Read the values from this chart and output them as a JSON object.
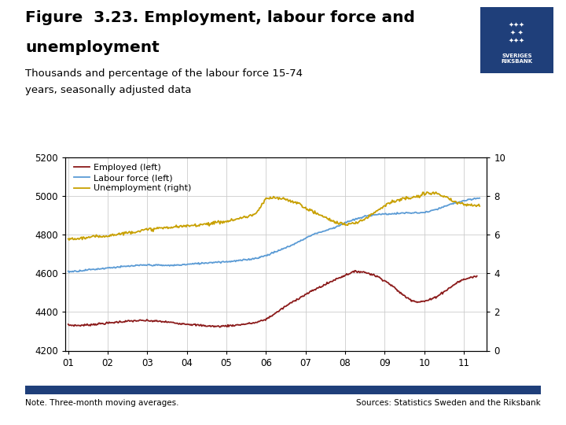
{
  "title_line1": "Figure  3.23. Employment, labour force and",
  "title_line2": "unemployment",
  "subtitle_line1": "Thousands and percentage of the labour force 15-74",
  "subtitle_line2": "years, seasonally adjusted data",
  "legend_labels": [
    "Employed (left)",
    "Labour force (left)",
    "Unemployment (right)"
  ],
  "employed_color": "#8B1A1A",
  "labour_color": "#5B9BD5",
  "unemployment_color": "#C8A000",
  "x_ticks": [
    "01",
    "02",
    "03",
    "04",
    "05",
    "06",
    "07",
    "08",
    "09",
    "10",
    "11"
  ],
  "yleft_ticks": [
    4200,
    4400,
    4600,
    4800,
    5000,
    5200
  ],
  "yright_ticks": [
    0,
    2,
    4,
    6,
    8,
    10
  ],
  "note": "Note. Three-month moving averages.",
  "source": "Sources: Statistics Sweden and the Riksbank",
  "footer_bar_color": "#1F3F7A",
  "background_color": "#FFFFFF",
  "grid_color": "#CCCCCC",
  "emp_x": [
    2001.0,
    2001.25,
    2001.5,
    2001.75,
    2002.0,
    2002.25,
    2002.5,
    2002.75,
    2003.0,
    2003.25,
    2003.5,
    2003.75,
    2004.0,
    2004.25,
    2004.5,
    2004.75,
    2005.0,
    2005.25,
    2005.5,
    2005.75,
    2006.0,
    2006.25,
    2006.5,
    2006.75,
    2007.0,
    2007.25,
    2007.5,
    2007.75,
    2008.0,
    2008.17,
    2008.33,
    2008.5,
    2008.67,
    2008.83,
    2009.0,
    2009.17,
    2009.33,
    2009.5,
    2009.67,
    2009.83,
    2010.0,
    2010.17,
    2010.33,
    2010.5,
    2010.67,
    2010.83,
    2011.0,
    2011.17,
    2011.33
  ],
  "emp_y": [
    4332,
    4330,
    4333,
    4338,
    4342,
    4348,
    4352,
    4355,
    4355,
    4352,
    4348,
    4342,
    4338,
    4332,
    4328,
    4325,
    4328,
    4332,
    4338,
    4345,
    4362,
    4395,
    4430,
    4462,
    4490,
    4518,
    4542,
    4568,
    4590,
    4605,
    4610,
    4605,
    4595,
    4582,
    4562,
    4538,
    4510,
    4482,
    4462,
    4452,
    4455,
    4465,
    4482,
    4505,
    4528,
    4552,
    4568,
    4578,
    4585
  ],
  "lab_x": [
    2001.0,
    2001.25,
    2001.5,
    2001.75,
    2002.0,
    2002.25,
    2002.5,
    2002.75,
    2003.0,
    2003.25,
    2003.5,
    2003.75,
    2004.0,
    2004.25,
    2004.5,
    2004.75,
    2005.0,
    2005.25,
    2005.5,
    2005.75,
    2006.0,
    2006.25,
    2006.5,
    2006.75,
    2007.0,
    2007.25,
    2007.5,
    2007.75,
    2008.0,
    2008.25,
    2008.5,
    2008.75,
    2009.0,
    2009.25,
    2009.5,
    2009.75,
    2010.0,
    2010.25,
    2010.5,
    2010.75,
    2011.0,
    2011.25,
    2011.4
  ],
  "lab_y": [
    4608,
    4612,
    4618,
    4622,
    4628,
    4632,
    4636,
    4640,
    4643,
    4642,
    4640,
    4642,
    4646,
    4650,
    4654,
    4658,
    4660,
    4664,
    4670,
    4678,
    4692,
    4712,
    4732,
    4755,
    4782,
    4806,
    4820,
    4838,
    4862,
    4878,
    4894,
    4904,
    4906,
    4908,
    4912,
    4912,
    4914,
    4926,
    4944,
    4962,
    4974,
    4984,
    4990
  ],
  "unemp_x": [
    2001.0,
    2001.25,
    2001.5,
    2001.75,
    2002.0,
    2002.25,
    2002.5,
    2002.75,
    2003.0,
    2003.25,
    2003.5,
    2003.75,
    2004.0,
    2004.25,
    2004.5,
    2004.75,
    2005.0,
    2005.25,
    2005.5,
    2005.75,
    2006.0,
    2006.17,
    2006.33,
    2006.5,
    2006.67,
    2006.83,
    2007.0,
    2007.17,
    2007.33,
    2007.5,
    2007.67,
    2007.83,
    2008.0,
    2008.17,
    2008.33,
    2008.5,
    2008.67,
    2008.83,
    2009.0,
    2009.17,
    2009.33,
    2009.5,
    2009.67,
    2009.83,
    2010.0,
    2010.17,
    2010.33,
    2010.5,
    2010.67,
    2010.83,
    2011.0,
    2011.17,
    2011.4
  ],
  "unemp_y": [
    5.75,
    5.8,
    5.85,
    5.9,
    5.95,
    6.02,
    6.1,
    6.18,
    6.25,
    6.32,
    6.36,
    6.4,
    6.44,
    6.5,
    6.56,
    6.62,
    6.68,
    6.8,
    6.92,
    7.08,
    7.85,
    7.9,
    7.88,
    7.82,
    7.72,
    7.6,
    7.38,
    7.2,
    7.05,
    6.88,
    6.72,
    6.6,
    6.52,
    6.55,
    6.65,
    6.82,
    7.05,
    7.28,
    7.52,
    7.68,
    7.78,
    7.85,
    7.9,
    7.95,
    8.1,
    8.18,
    8.12,
    7.95,
    7.78,
    7.65,
    7.58,
    7.52,
    7.48
  ]
}
